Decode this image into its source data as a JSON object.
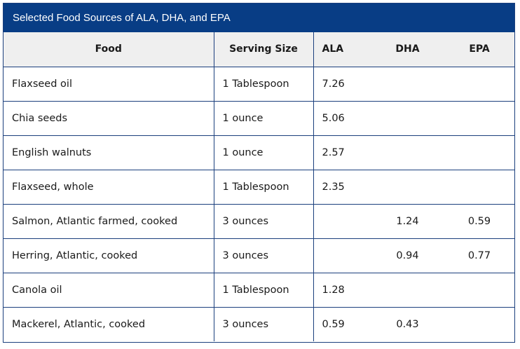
{
  "caption": "Selected Food Sources of ALA, DHA, and EPA",
  "headers": {
    "food": "Food",
    "serving": "Serving Size",
    "ala": "ALA",
    "dha": "DHA",
    "epa": "EPA"
  },
  "rows": [
    {
      "food": "Flaxseed oil",
      "serving": "1 Tablespoon",
      "ala": "7.26",
      "dha": "",
      "epa": ""
    },
    {
      "food": "Chia seeds",
      "serving": "1 ounce",
      "ala": "5.06",
      "dha": "",
      "epa": ""
    },
    {
      "food": "English walnuts",
      "serving": "1 ounce",
      "ala": "2.57",
      "dha": "",
      "epa": ""
    },
    {
      "food": "Flaxseed, whole",
      "serving": "1 Tablespoon",
      "ala": "2.35",
      "dha": "",
      "epa": ""
    },
    {
      "food": "Salmon, Atlantic farmed, cooked",
      "serving": "3 ounces",
      "ala": "",
      "dha": "1.24",
      "epa": "0.59"
    },
    {
      "food": "Herring, Atlantic, cooked",
      "serving": "3 ounces",
      "ala": "",
      "dha": "0.94",
      "epa": "0.77"
    },
    {
      "food": "Canola oil",
      "serving": "1 Tablespoon",
      "ala": "1.28",
      "dha": "",
      "epa": ""
    },
    {
      "food": "Mackerel, Atlantic, cooked",
      "serving": "3 ounces",
      "ala": "0.59",
      "dha": "0.43",
      "epa": ""
    }
  ]
}
